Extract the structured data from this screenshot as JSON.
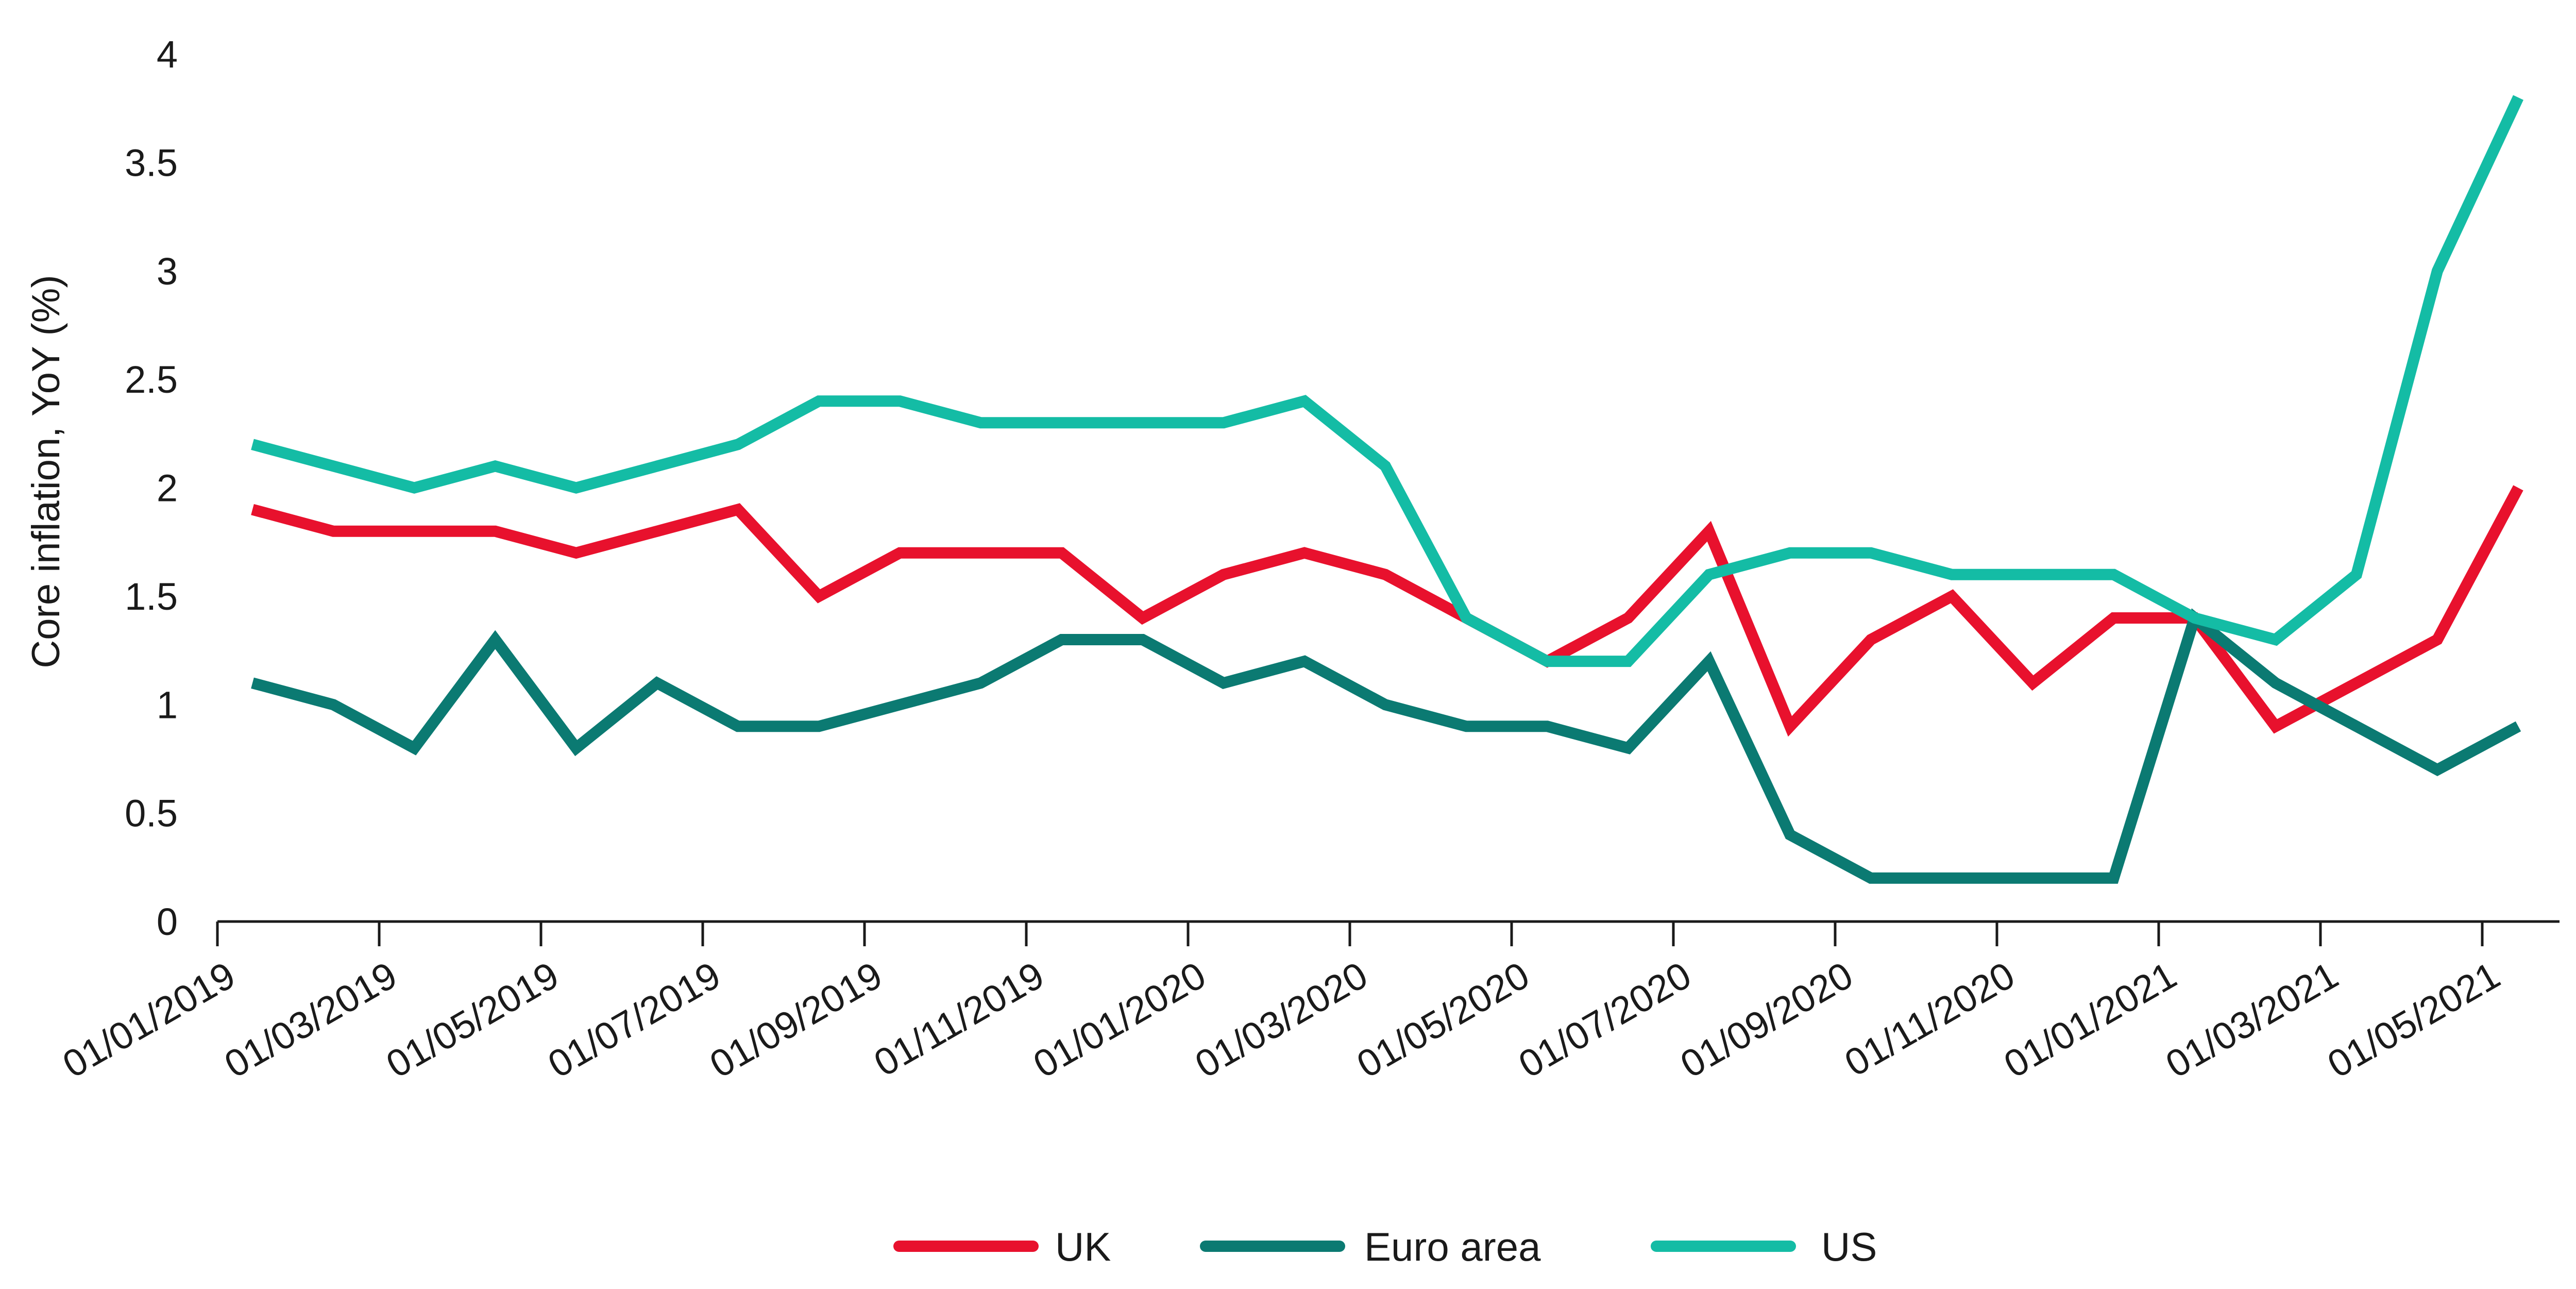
{
  "chart_data": {
    "type": "line",
    "title": "",
    "xlabel": "",
    "ylabel": "Core inflation, YoY (%)",
    "ylim": [
      0,
      4
    ],
    "yticks": [
      "0",
      "0.5",
      "1",
      "1.5",
      "2",
      "2.5",
      "3",
      "3.5",
      "4"
    ],
    "x_tick_labels": [
      "01/01/2019",
      "01/03/2019",
      "01/05/2019",
      "01/07/2019",
      "01/09/2019",
      "01/11/2019",
      "01/01/2020",
      "01/03/2020",
      "01/05/2020",
      "01/07/2020",
      "01/09/2020",
      "01/11/2020",
      "01/01/2021",
      "01/03/2021",
      "01/05/2021"
    ],
    "x": [
      "2019-01",
      "2019-02",
      "2019-03",
      "2019-04",
      "2019-05",
      "2019-06",
      "2019-07",
      "2019-08",
      "2019-09",
      "2019-10",
      "2019-11",
      "2019-12",
      "2020-01",
      "2020-02",
      "2020-03",
      "2020-04",
      "2020-05",
      "2020-06",
      "2020-07",
      "2020-08",
      "2020-09",
      "2020-10",
      "2020-11",
      "2020-12",
      "2021-01",
      "2021-02",
      "2021-03",
      "2021-04",
      "2021-05"
    ],
    "grid": false,
    "legend_position": "bottom",
    "series": [
      {
        "name": "UK",
        "color": "#e8112d",
        "values": [
          1.9,
          1.8,
          1.8,
          1.8,
          1.7,
          1.8,
          1.9,
          1.5,
          1.7,
          1.7,
          1.7,
          1.4,
          1.6,
          1.7,
          1.6,
          1.4,
          1.2,
          1.4,
          1.8,
          0.9,
          1.3,
          1.5,
          1.1,
          1.4,
          1.4,
          0.9,
          1.1,
          1.3,
          2.0
        ]
      },
      {
        "name": "Euro area",
        "color": "#0b7a72",
        "values": [
          1.1,
          1.0,
          0.8,
          1.3,
          0.8,
          1.1,
          0.9,
          0.9,
          1.0,
          1.1,
          1.3,
          1.3,
          1.1,
          1.2,
          1.0,
          0.9,
          0.9,
          0.8,
          1.2,
          0.4,
          0.2,
          0.2,
          0.2,
          0.2,
          1.4,
          1.1,
          0.9,
          0.7,
          0.9
        ]
      },
      {
        "name": "US",
        "color": "#14bca5",
        "values": [
          2.2,
          2.1,
          2.0,
          2.1,
          2.0,
          2.1,
          2.2,
          2.4,
          2.4,
          2.3,
          2.3,
          2.3,
          2.3,
          2.4,
          2.1,
          1.4,
          1.2,
          1.2,
          1.6,
          1.7,
          1.7,
          1.6,
          1.6,
          1.6,
          1.4,
          1.3,
          1.6,
          3.0,
          3.8
        ]
      }
    ]
  }
}
